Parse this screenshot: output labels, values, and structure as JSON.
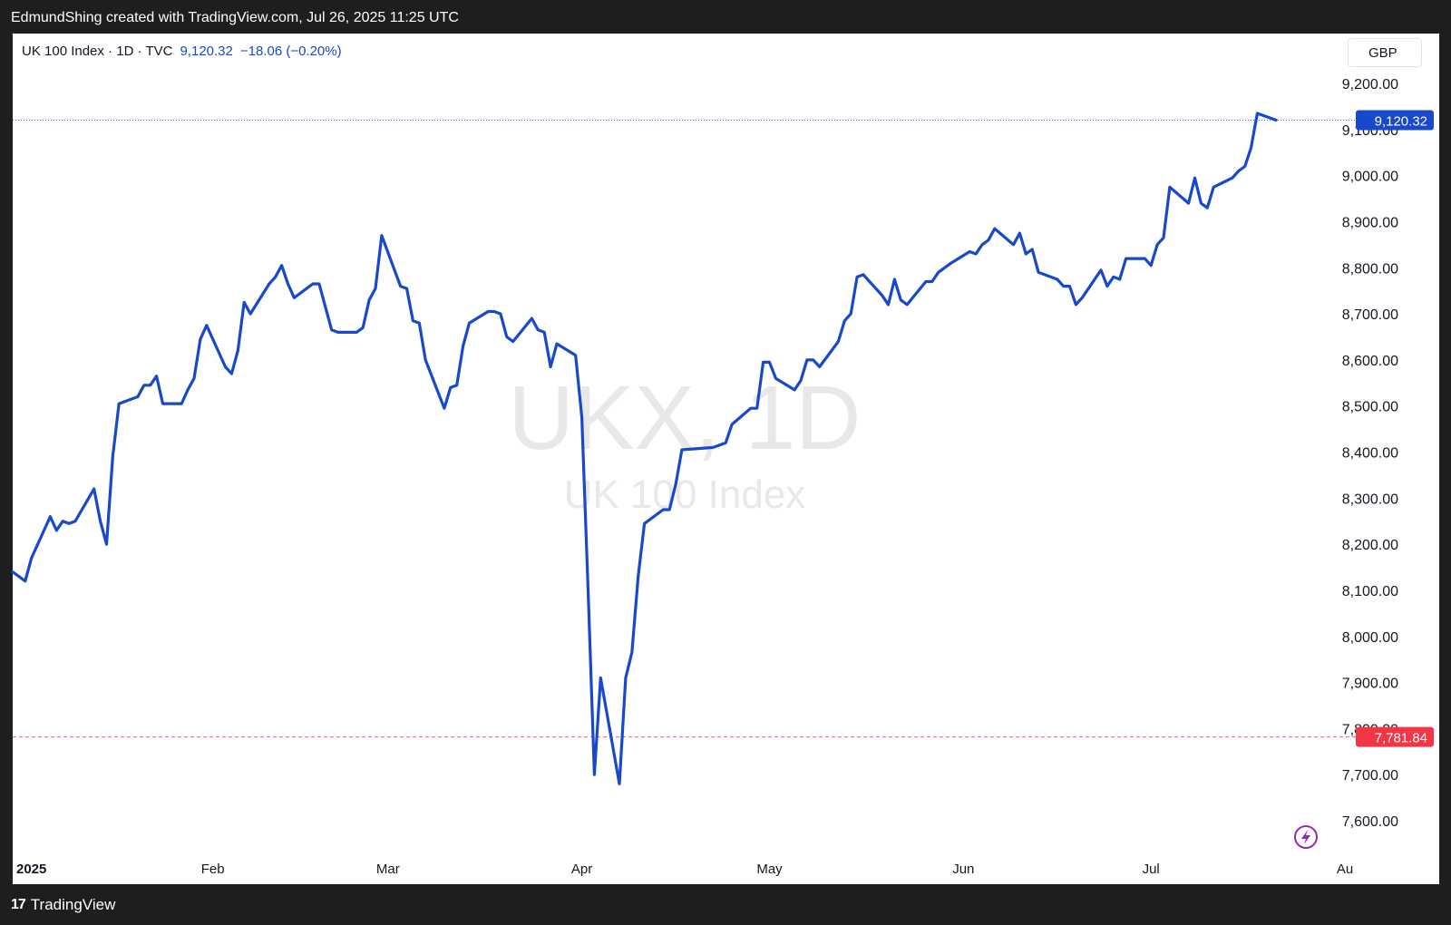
{
  "header": {
    "attribution": "EdmundShing created with TradingView.com, Jul 26, 2025 11:25 UTC"
  },
  "legend": {
    "symbol": "UK 100 Index · 1D · TVC",
    "last_value": "9,120.32",
    "change": "−18.06 (−0.20%)"
  },
  "currency_button": "GBP",
  "watermark": {
    "ticker": "UKX, 1D",
    "name": "UK 100 Index"
  },
  "footer": {
    "logo_mark": "17",
    "brand": "TradingView"
  },
  "colors": {
    "line": "#1848cc",
    "last_price_badge": "#1848cc",
    "low_badge": "#f23645",
    "background": "#ffffff",
    "frame": "#1e1e1e"
  },
  "icons": {
    "lightning": "lightning-icon",
    "logo": "tradingview-logo-icon"
  },
  "chart_data": {
    "type": "line",
    "title": "",
    "xlabel": "",
    "ylabel": "",
    "currency": "GBP",
    "grid": false,
    "ylim": [
      7540,
      9290
    ],
    "y_ticks": [
      "9,200.00",
      "9,100.00",
      "9,000.00",
      "8,900.00",
      "8,800.00",
      "8,700.00",
      "8,600.00",
      "8,500.00",
      "8,400.00",
      "8,300.00",
      "8,200.00",
      "8,100.00",
      "8,000.00",
      "7,900.00",
      "7,800.00",
      "7,700.00",
      "7,600.00"
    ],
    "y_tick_values": [
      9200,
      9100,
      9000,
      8900,
      8800,
      8700,
      8600,
      8500,
      8400,
      8300,
      8200,
      8100,
      8000,
      7900,
      7800,
      7700,
      7600
    ],
    "x_ticks": [
      {
        "label": "2025",
        "date": "2025-01-01",
        "bold": true
      },
      {
        "label": "Feb",
        "date": "2025-02-01"
      },
      {
        "label": "Mar",
        "date": "2025-03-01"
      },
      {
        "label": "Apr",
        "date": "2025-04-01"
      },
      {
        "label": "May",
        "date": "2025-05-01"
      },
      {
        "label": "Jun",
        "date": "2025-06-01"
      },
      {
        "label": "Jul",
        "date": "2025-07-01"
      },
      {
        "label": "Au",
        "date": "2025-08-01"
      }
    ],
    "x_range": [
      "2024-12-31",
      "2025-08-01"
    ],
    "price_lines": [
      {
        "value": 9120.32,
        "label": "9,120.32",
        "style": "dotted",
        "color": "#1848cc"
      },
      {
        "value": 7781.84,
        "label": "7,781.84",
        "style": "dashed",
        "color": "#f23645"
      }
    ],
    "series": [
      {
        "color": "#1848cc",
        "points": [
          [
            "2024-12-31",
            8140
          ],
          [
            "2025-01-02",
            8120
          ],
          [
            "2025-01-03",
            8170
          ],
          [
            "2025-01-06",
            8260
          ],
          [
            "2025-01-07",
            8230
          ],
          [
            "2025-01-08",
            8250
          ],
          [
            "2025-01-09",
            8245
          ],
          [
            "2025-01-10",
            8250
          ],
          [
            "2025-01-13",
            8320
          ],
          [
            "2025-01-14",
            8250
          ],
          [
            "2025-01-15",
            8200
          ],
          [
            "2025-01-16",
            8390
          ],
          [
            "2025-01-17",
            8505
          ],
          [
            "2025-01-20",
            8520
          ],
          [
            "2025-01-21",
            8545
          ],
          [
            "2025-01-22",
            8545
          ],
          [
            "2025-01-23",
            8565
          ],
          [
            "2025-01-24",
            8505
          ],
          [
            "2025-01-27",
            8505
          ],
          [
            "2025-01-28",
            8535
          ],
          [
            "2025-01-29",
            8560
          ],
          [
            "2025-01-30",
            8645
          ],
          [
            "2025-01-31",
            8675
          ],
          [
            "2025-02-03",
            8585
          ],
          [
            "2025-02-04",
            8570
          ],
          [
            "2025-02-05",
            8620
          ],
          [
            "2025-02-06",
            8725
          ],
          [
            "2025-02-07",
            8700
          ],
          [
            "2025-02-10",
            8765
          ],
          [
            "2025-02-11",
            8780
          ],
          [
            "2025-02-12",
            8805
          ],
          [
            "2025-02-13",
            8765
          ],
          [
            "2025-02-14",
            8735
          ],
          [
            "2025-02-17",
            8765
          ],
          [
            "2025-02-18",
            8765
          ],
          [
            "2025-02-19",
            8715
          ],
          [
            "2025-02-20",
            8665
          ],
          [
            "2025-02-21",
            8660
          ],
          [
            "2025-02-24",
            8660
          ],
          [
            "2025-02-25",
            8670
          ],
          [
            "2025-02-26",
            8730
          ],
          [
            "2025-02-27",
            8755
          ],
          [
            "2025-02-28",
            8870
          ],
          [
            "2025-03-03",
            8760
          ],
          [
            "2025-03-04",
            8755
          ],
          [
            "2025-03-05",
            8685
          ],
          [
            "2025-03-06",
            8680
          ],
          [
            "2025-03-07",
            8600
          ],
          [
            "2025-03-10",
            8495
          ],
          [
            "2025-03-11",
            8540
          ],
          [
            "2025-03-12",
            8545
          ],
          [
            "2025-03-13",
            8630
          ],
          [
            "2025-03-14",
            8680
          ],
          [
            "2025-03-17",
            8705
          ],
          [
            "2025-03-18",
            8705
          ],
          [
            "2025-03-19",
            8700
          ],
          [
            "2025-03-20",
            8650
          ],
          [
            "2025-03-21",
            8640
          ],
          [
            "2025-03-24",
            8690
          ],
          [
            "2025-03-25",
            8665
          ],
          [
            "2025-03-26",
            8660
          ],
          [
            "2025-03-27",
            8585
          ],
          [
            "2025-03-28",
            8635
          ],
          [
            "2025-03-31",
            8610
          ],
          [
            "2025-04-01",
            8475
          ],
          [
            "2025-04-02",
            8100
          ],
          [
            "2025-04-03",
            7700
          ],
          [
            "2025-04-04",
            7910
          ],
          [
            "2025-04-07",
            7680
          ],
          [
            "2025-04-08",
            7910
          ],
          [
            "2025-04-09",
            7965
          ],
          [
            "2025-04-10",
            8130
          ],
          [
            "2025-04-11",
            8245
          ],
          [
            "2025-04-14",
            8275
          ],
          [
            "2025-04-15",
            8275
          ],
          [
            "2025-04-16",
            8330
          ],
          [
            "2025-04-17",
            8405
          ],
          [
            "2025-04-22",
            8410
          ],
          [
            "2025-04-23",
            8415
          ],
          [
            "2025-04-24",
            8420
          ],
          [
            "2025-04-25",
            8460
          ],
          [
            "2025-04-28",
            8495
          ],
          [
            "2025-04-29",
            8495
          ],
          [
            "2025-04-30",
            8595
          ],
          [
            "2025-05-01",
            8595
          ],
          [
            "2025-05-02",
            8560
          ],
          [
            "2025-05-05",
            8535
          ],
          [
            "2025-05-06",
            8555
          ],
          [
            "2025-05-07",
            8600
          ],
          [
            "2025-05-08",
            8600
          ],
          [
            "2025-05-09",
            8585
          ],
          [
            "2025-05-12",
            8640
          ],
          [
            "2025-05-13",
            8685
          ],
          [
            "2025-05-14",
            8700
          ],
          [
            "2025-05-15",
            8780
          ],
          [
            "2025-05-16",
            8785
          ],
          [
            "2025-05-19",
            8740
          ],
          [
            "2025-05-20",
            8720
          ],
          [
            "2025-05-21",
            8775
          ],
          [
            "2025-05-22",
            8730
          ],
          [
            "2025-05-23",
            8720
          ],
          [
            "2025-05-26",
            8770
          ],
          [
            "2025-05-27",
            8770
          ],
          [
            "2025-05-28",
            8790
          ],
          [
            "2025-05-29",
            8800
          ],
          [
            "2025-05-30",
            8810
          ],
          [
            "2025-06-02",
            8835
          ],
          [
            "2025-06-03",
            8830
          ],
          [
            "2025-06-04",
            8850
          ],
          [
            "2025-06-05",
            8860
          ],
          [
            "2025-06-06",
            8885
          ],
          [
            "2025-06-09",
            8850
          ],
          [
            "2025-06-10",
            8875
          ],
          [
            "2025-06-11",
            8830
          ],
          [
            "2025-06-12",
            8840
          ],
          [
            "2025-06-13",
            8790
          ],
          [
            "2025-06-16",
            8775
          ],
          [
            "2025-06-17",
            8760
          ],
          [
            "2025-06-18",
            8760
          ],
          [
            "2025-06-19",
            8720
          ],
          [
            "2025-06-20",
            8735
          ],
          [
            "2025-06-23",
            8795
          ],
          [
            "2025-06-24",
            8760
          ],
          [
            "2025-06-25",
            8780
          ],
          [
            "2025-06-26",
            8775
          ],
          [
            "2025-06-27",
            8820
          ],
          [
            "2025-06-30",
            8820
          ],
          [
            "2025-07-01",
            8805
          ],
          [
            "2025-07-02",
            8850
          ],
          [
            "2025-07-03",
            8865
          ],
          [
            "2025-07-04",
            8975
          ],
          [
            "2025-07-07",
            8940
          ],
          [
            "2025-07-08",
            8995
          ],
          [
            "2025-07-09",
            8940
          ],
          [
            "2025-07-10",
            8930
          ],
          [
            "2025-07-11",
            8975
          ],
          [
            "2025-07-14",
            8995
          ],
          [
            "2025-07-15",
            9010
          ],
          [
            "2025-07-16",
            9020
          ],
          [
            "2025-07-17",
            9060
          ],
          [
            "2025-07-18",
            9135
          ],
          [
            "2025-07-21",
            9120.32
          ]
        ]
      }
    ]
  }
}
